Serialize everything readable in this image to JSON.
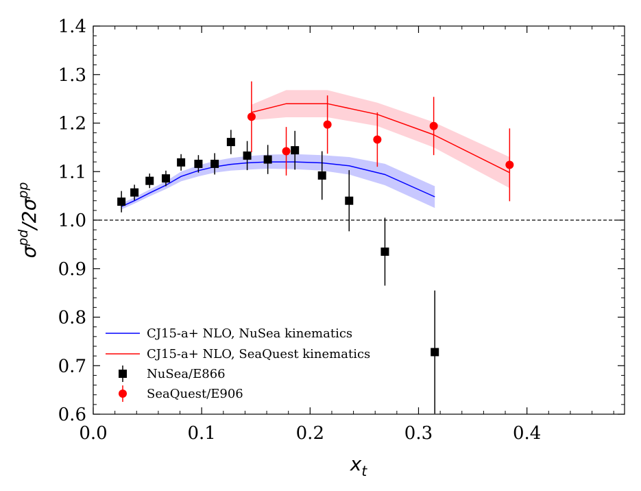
{
  "chart_data": {
    "type": "scatter",
    "title": "",
    "xlabel": "x_t",
    "ylabel": "σ^pd/2σ^pp",
    "xlim": [
      0.0,
      0.49
    ],
    "ylim": [
      0.6,
      1.4
    ],
    "x_ticks": [
      0.0,
      0.1,
      0.2,
      0.3,
      0.4
    ],
    "x_tick_labels": [
      "0.0",
      "0.1",
      "0.2",
      "0.3",
      "0.4"
    ],
    "y_ticks": [
      0.6,
      0.7,
      0.8,
      0.9,
      1.0,
      1.1,
      1.2,
      1.3,
      1.4
    ],
    "y_tick_labels": [
      "0.6",
      "0.7",
      "0.8",
      "0.9",
      "1.0",
      "1.1",
      "1.2",
      "1.3",
      "1.4"
    ],
    "reference_line": {
      "y": 1.0,
      "style": "dashed",
      "color": "#000000"
    },
    "legend_position": "lower-left",
    "series": [
      {
        "name": "CJ15-a+ NLO, NuSea kinematics",
        "kind": "line_band",
        "color": "#0000ff",
        "band_color": "#c8c8ff",
        "x": [
          0.026,
          0.038,
          0.052,
          0.067,
          0.081,
          0.097,
          0.112,
          0.127,
          0.142,
          0.161,
          0.186,
          0.211,
          0.236,
          0.269,
          0.315
        ],
        "y": [
          1.028,
          1.04,
          1.056,
          1.072,
          1.09,
          1.102,
          1.11,
          1.115,
          1.118,
          1.12,
          1.12,
          1.118,
          1.112,
          1.094,
          1.048
        ],
        "y_low": [
          1.022,
          1.034,
          1.049,
          1.064,
          1.08,
          1.09,
          1.098,
          1.102,
          1.104,
          1.106,
          1.105,
          1.102,
          1.094,
          1.072,
          1.025
        ],
        "y_high": [
          1.034,
          1.047,
          1.063,
          1.08,
          1.1,
          1.113,
          1.122,
          1.128,
          1.132,
          1.135,
          1.136,
          1.134,
          1.13,
          1.116,
          1.07
        ]
      },
      {
        "name": "CJ15-a+ NLO, SeaQuest kinematics",
        "kind": "line_band",
        "color": "#ff0000",
        "band_color": "#ffd2d8",
        "x": [
          0.146,
          0.178,
          0.216,
          0.262,
          0.314,
          0.384
        ],
        "y": [
          1.222,
          1.24,
          1.24,
          1.218,
          1.176,
          1.098
        ],
        "y_low": [
          1.206,
          1.212,
          1.212,
          1.194,
          1.15,
          1.066
        ],
        "y_high": [
          1.238,
          1.268,
          1.268,
          1.242,
          1.202,
          1.13
        ]
      },
      {
        "name": "NuSea/E866",
        "kind": "errorbar",
        "marker": "square",
        "color": "#000000",
        "x": [
          0.026,
          0.038,
          0.052,
          0.067,
          0.081,
          0.097,
          0.112,
          0.127,
          0.142,
          0.161,
          0.186,
          0.211,
          0.236,
          0.269,
          0.315
        ],
        "y": [
          1.038,
          1.057,
          1.081,
          1.086,
          1.119,
          1.116,
          1.116,
          1.161,
          1.133,
          1.125,
          1.144,
          1.092,
          1.04,
          0.935,
          0.728
        ],
        "err": [
          0.022,
          0.016,
          0.015,
          0.016,
          0.017,
          0.018,
          0.022,
          0.025,
          0.03,
          0.03,
          0.04,
          0.05,
          0.063,
          0.07,
          0.127
        ]
      },
      {
        "name": "SeaQuest/E906",
        "kind": "errorbar",
        "marker": "circle",
        "color": "#ff0000",
        "x": [
          0.146,
          0.178,
          0.216,
          0.262,
          0.314,
          0.384
        ],
        "y": [
          1.213,
          1.142,
          1.197,
          1.166,
          1.194,
          1.114
        ],
        "err": [
          0.073,
          0.05,
          0.06,
          0.056,
          0.06,
          0.075
        ]
      }
    ]
  }
}
